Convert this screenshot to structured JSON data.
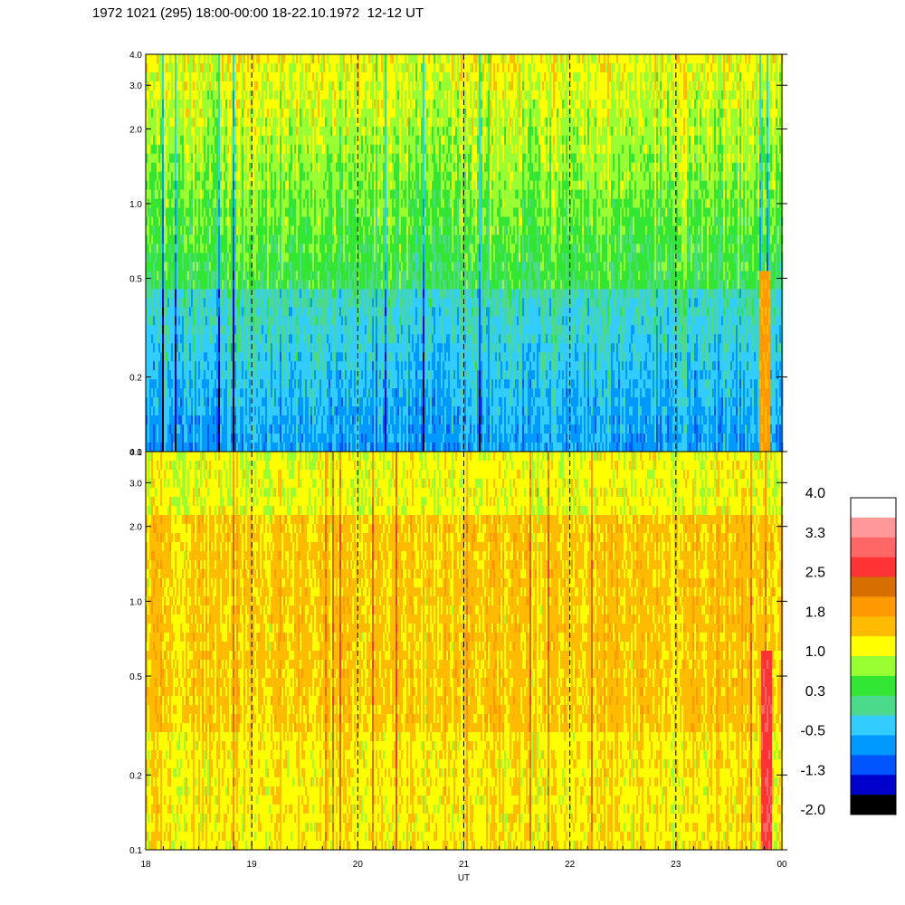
{
  "title": "1972 1021 (295) 18:00-00:00 18-22.10.1972  12-12 UT",
  "chart_data": {
    "type": "heatmap",
    "xlabel": "UT",
    "x_ticks": [
      "18",
      "19",
      "20",
      "21",
      "22",
      "23",
      "00"
    ],
    "xlim": [
      18,
      24
    ],
    "vertical_dashed_lines_at": [
      19,
      20,
      21,
      22,
      23
    ],
    "y_scale": "log",
    "ylim": [
      0.1,
      4.0
    ],
    "panels": [
      {
        "name": "top",
        "y_ticks": [
          "0.1",
          "0.2",
          "0.5",
          "1.0",
          "2.0",
          "3.0",
          "4.0"
        ],
        "dominant_levels": "green to cyan (approx. -0.5 to 0.6), yellow-green streaks above 1.5",
        "bottom_band_level": -0.5,
        "right_edge_feature": {
          "x_start": 23.78,
          "x_end": 23.88,
          "level": 1.8
        }
      },
      {
        "name": "bottom",
        "y_ticks": [
          "0.1",
          "0.2",
          "0.5",
          "1.0",
          "2.0",
          "3.0",
          "4.0"
        ],
        "dominant_levels": "yellow to orange (approx. 1.0 to 2.2)",
        "right_edge_feature": {
          "x_start": 23.8,
          "x_end": 23.9,
          "level": 2.8
        }
      }
    ],
    "colorbar": {
      "tick_labels": [
        "4.0",
        "3.3",
        "2.5",
        "1.8",
        "1.0",
        "0.3",
        "-0.5",
        "-1.3",
        "-2.0"
      ],
      "colors": [
        "#ffffff",
        "#ff9999",
        "#ff6666",
        "#ff3333",
        "#d66f00",
        "#ff9900",
        "#ffbb00",
        "#ffff00",
        "#99ff33",
        "#33e633",
        "#4cd98c",
        "#33ccff",
        "#0099ff",
        "#0055ff",
        "#0000cc",
        "#000000"
      ]
    }
  }
}
